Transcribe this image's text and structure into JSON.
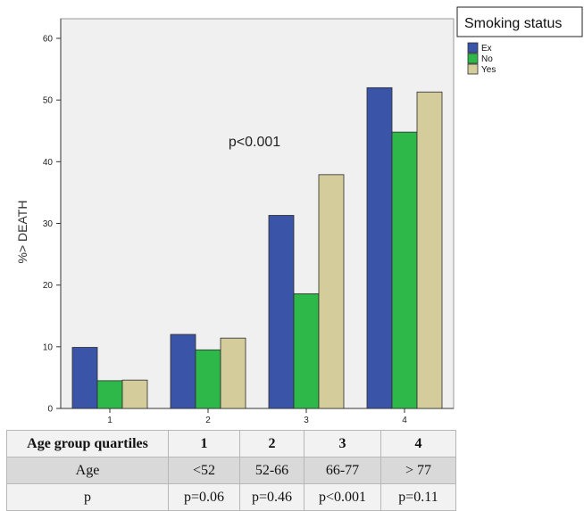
{
  "chart_data": {
    "type": "bar",
    "categories": [
      "1",
      "2",
      "3",
      "4"
    ],
    "series": [
      {
        "name": "Ex",
        "color": "#3a54a8",
        "values": [
          9.9,
          12.0,
          31.3,
          52.0
        ]
      },
      {
        "name": "No",
        "color": "#2fb84a",
        "values": [
          4.5,
          9.5,
          18.6,
          44.8
        ]
      },
      {
        "name": "Yes",
        "color": "#d4cd9b",
        "values": [
          4.6,
          11.4,
          37.9,
          51.3
        ]
      }
    ],
    "ylabel": "%> DEATH",
    "xlabel": "",
    "ylim": [
      0,
      60
    ],
    "yticks": [
      0,
      10,
      20,
      30,
      40,
      50,
      60
    ],
    "grid": false,
    "plot_background": "#f0f0f0",
    "legend_title": "Smoking status",
    "legend_position": "top-right, outside plot",
    "annotation": "p<0.001"
  },
  "table": {
    "header": [
      "Age group quartiles",
      "1",
      "2",
      "3",
      "4"
    ],
    "rows": [
      [
        "Age",
        "<52",
        "52-66",
        "66-77",
        "> 77"
      ],
      [
        "p",
        "p=0.06",
        "p=0.46",
        "p<0.001",
        "p=0.11"
      ]
    ]
  }
}
